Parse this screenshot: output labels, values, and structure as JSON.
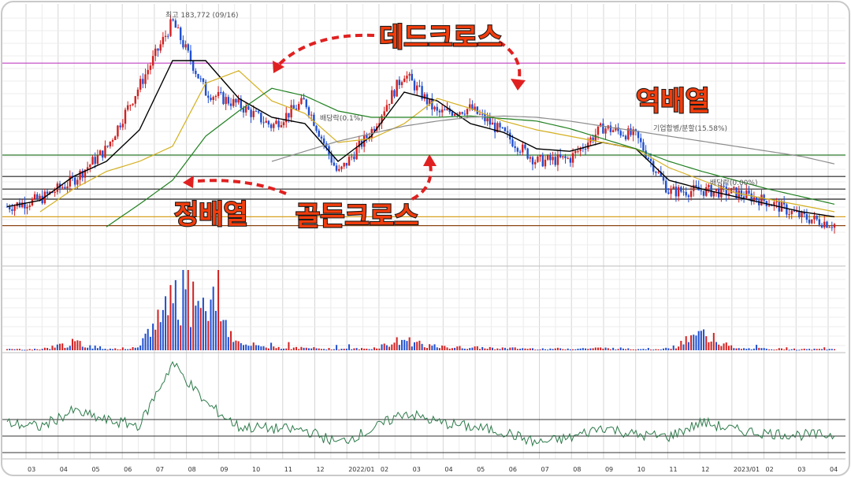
{
  "chart_data": {
    "type": "candlestick",
    "panels": [
      "price",
      "volume",
      "oscillator"
    ],
    "x_tick_labels": [
      "03",
      "04",
      "05",
      "06",
      "07",
      "08",
      "09",
      "10",
      "11",
      "12",
      "2022/01",
      "02",
      "03",
      "04",
      "05",
      "06",
      "07",
      "08",
      "09",
      "10",
      "11",
      "12",
      "2023/01",
      "02",
      "03",
      "04"
    ],
    "price_events": {
      "high_label": "최고 183,772 (09/16)",
      "dividend_1": "배당락(0.1%)",
      "merger": "기업합병/분할(15.58%)",
      "dividend_2": "배당락(0.00%)"
    },
    "annotations": {
      "dead_cross": "데드크로스",
      "golden_cross": "골든크로스",
      "regular_arrangement": "정배열",
      "reverse_arrangement": "역배열"
    },
    "series": [
      {
        "name": "price",
        "values": [
          34,
          40,
          55,
          80,
          130,
          181,
          125,
          115,
          98,
          118,
          60,
          94,
          140,
          108,
          112,
          92,
          70,
          72,
          97,
          90,
          46,
          47,
          45,
          38,
          26,
          20
        ]
      },
      {
        "name": "MA-short",
        "values": [
          34,
          39,
          58,
          70,
          95,
          150,
          150,
          120,
          105,
          100,
          70,
          90,
          125,
          118,
          100,
          93,
          80,
          78,
          85,
          80,
          55,
          48,
          42,
          36,
          30,
          26
        ]
      },
      {
        "name": "MA-mid",
        "values": [
          0,
          30,
          48,
          62,
          70,
          82,
          132,
          142,
          118,
          108,
          85,
          88,
          100,
          120,
          112,
          102,
          95,
          90,
          85,
          80,
          65,
          55,
          45,
          40,
          35,
          30
        ]
      },
      {
        "name": "MA-long",
        "values": [
          0,
          0,
          0,
          18,
          36,
          55,
          90,
          110,
          128,
          122,
          110,
          105,
          105,
          105,
          106,
          104,
          102,
          96,
          88,
          80,
          70,
          62,
          55,
          48,
          42,
          36
        ]
      },
      {
        "name": "MA-longest",
        "values": [
          0,
          0,
          0,
          0,
          0,
          0,
          0,
          0,
          70,
          78,
          86,
          92,
          98,
          102,
          105,
          106,
          105,
          102,
          98,
          94,
          90,
          86,
          82,
          78,
          74,
          68
        ]
      }
    ],
    "volume": [
      2,
      2,
      14,
      3,
      4,
      108,
      112,
      12,
      6,
      4,
      3,
      3,
      20,
      6,
      5,
      4,
      3,
      3,
      4,
      3,
      3,
      30,
      3,
      3,
      2,
      2
    ],
    "oscillator": [
      45,
      40,
      60,
      48,
      42,
      120,
      70,
      40,
      38,
      36,
      20,
      36,
      58,
      46,
      40,
      34,
      20,
      26,
      40,
      30,
      28,
      46,
      36,
      32,
      30,
      30
    ],
    "horizontal_levels": [
      {
        "level": 148,
        "color": "#c040c0"
      },
      {
        "level": 75,
        "color": "#2c7a2c"
      },
      {
        "level": 58,
        "color": "#222222"
      },
      {
        "level": 48,
        "color": "#222222"
      },
      {
        "level": 40,
        "color": "#222222"
      },
      {
        "level": 26,
        "color": "#d8a020"
      },
      {
        "level": 19,
        "color": "#8b4513"
      }
    ],
    "colors": {
      "up": "#d32020",
      "down": "#2050d0",
      "ma_short": "#000000",
      "ma_mid": "#d4b020",
      "ma_long": "#208020",
      "ma_longest": "#8c8c8c",
      "annotation": "#f23c0c",
      "arrow": "#e02020",
      "oscillator": "#2c7a4a",
      "grid": "#d6d6d6"
    }
  }
}
